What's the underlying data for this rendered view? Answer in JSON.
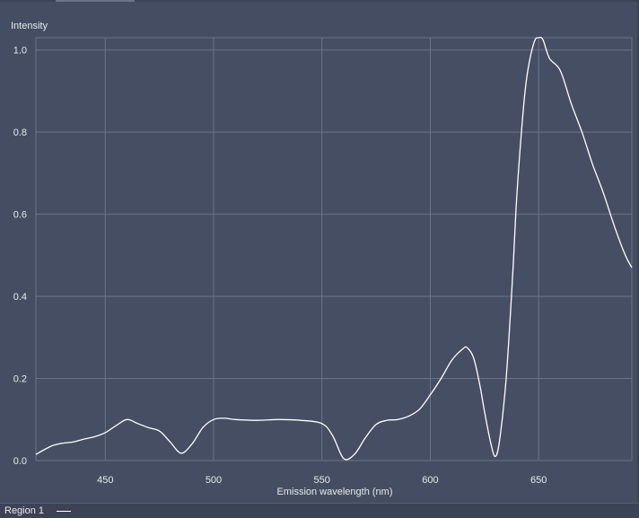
{
  "chart_data": {
    "type": "line",
    "title": "",
    "xlabel": "Emission wavelength (nm)",
    "ylabel": "Intensity",
    "xlim": [
      418,
      693
    ],
    "ylim": [
      0,
      1.03
    ],
    "xticks": [
      450,
      500,
      550,
      600,
      650
    ],
    "yticks": [
      "0.0",
      "0.2",
      "0.4",
      "0.6",
      "0.8",
      "1.0"
    ],
    "grid": true,
    "legend_position": "bottom-left",
    "series": [
      {
        "name": "Region 1",
        "color": "#ffffff",
        "x": [
          418,
          425,
          430,
          435,
          440,
          445,
          450,
          455,
          460,
          465,
          470,
          475,
          480,
          485,
          490,
          495,
          500,
          505,
          510,
          520,
          530,
          540,
          550,
          555,
          560,
          565,
          570,
          575,
          580,
          585,
          590,
          595,
          600,
          605,
          610,
          615,
          617,
          620,
          623,
          625,
          628,
          630,
          632,
          635,
          638,
          640,
          643,
          645,
          648,
          650,
          652,
          655,
          660,
          665,
          670,
          675,
          680,
          685,
          690,
          693
        ],
        "y": [
          0.015,
          0.035,
          0.042,
          0.045,
          0.052,
          0.058,
          0.068,
          0.085,
          0.1,
          0.09,
          0.08,
          0.072,
          0.045,
          0.018,
          0.04,
          0.08,
          0.1,
          0.103,
          0.1,
          0.098,
          0.1,
          0.098,
          0.09,
          0.06,
          0.005,
          0.015,
          0.055,
          0.088,
          0.098,
          0.1,
          0.108,
          0.125,
          0.16,
          0.2,
          0.245,
          0.272,
          0.275,
          0.25,
          0.18,
          0.12,
          0.04,
          0.01,
          0.05,
          0.2,
          0.45,
          0.65,
          0.86,
          0.95,
          1.02,
          1.03,
          1.025,
          0.98,
          0.95,
          0.87,
          0.8,
          0.72,
          0.65,
          0.57,
          0.5,
          0.47
        ]
      }
    ]
  },
  "legend": {
    "label": "Region 1",
    "color": "#ffffff"
  },
  "colors": {
    "background": "#444d61",
    "plot_area": "#454e63",
    "grid": "#6c7486",
    "text": "#e8eaf0"
  }
}
